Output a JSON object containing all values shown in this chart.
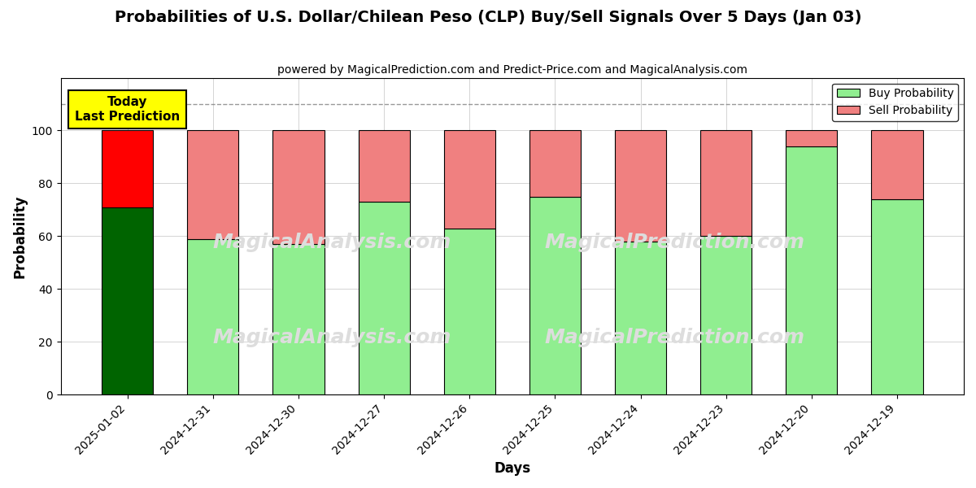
{
  "title": "Probabilities of U.S. Dollar/Chilean Peso (CLP) Buy/Sell Signals Over 5 Days (Jan 03)",
  "subtitle": "powered by MagicalPrediction.com and Predict-Price.com and MagicalAnalysis.com",
  "xlabel": "Days",
  "ylabel": "Probability",
  "dates": [
    "2025-01-02",
    "2024-12-31",
    "2024-12-30",
    "2024-12-27",
    "2024-12-26",
    "2024-12-25",
    "2024-12-24",
    "2024-12-23",
    "2024-12-20",
    "2024-12-19"
  ],
  "buy_values": [
    71,
    59,
    57,
    73,
    63,
    75,
    58,
    60,
    94,
    74
  ],
  "sell_values": [
    29,
    41,
    43,
    27,
    37,
    25,
    42,
    40,
    6,
    26
  ],
  "today_buy_color": "#006400",
  "today_sell_color": "#FF0000",
  "buy_color": "#90EE90",
  "sell_color": "#F08080",
  "today_annotation_text": "Today\nLast Prediction",
  "today_annotation_bg": "#FFFF00",
  "dashed_line_y": 110,
  "ylim": [
    0,
    120
  ],
  "yticks": [
    0,
    20,
    40,
    60,
    80,
    100
  ],
  "bar_edge_color": "#000000",
  "bar_width": 0.6,
  "grid_color": "#aaaaaa",
  "background_color": "#ffffff",
  "watermark_color": "#dddddd",
  "watermark_fontsize": 18
}
